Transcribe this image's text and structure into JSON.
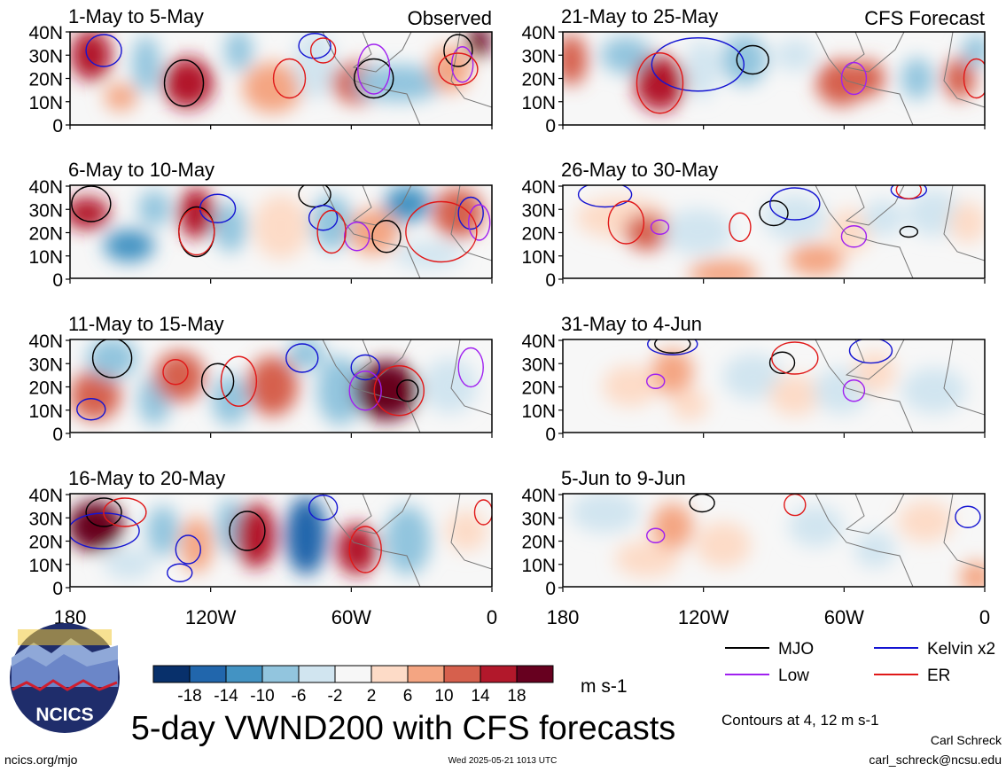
{
  "chart_data": {
    "type": "heatmap",
    "title": "5-day VWND200 with CFS forecasts",
    "variable": "VWND200",
    "units": "m s-1",
    "latitude_ticks": [
      "0",
      "10N",
      "20N",
      "30N",
      "40N"
    ],
    "longitude_ticks": [
      "180",
      "120W",
      "60W",
      "0"
    ],
    "colorbar": {
      "ticks": [
        "-18",
        "-14",
        "-10",
        "-6",
        "-2",
        "2",
        "6",
        "10",
        "14",
        "18"
      ],
      "colors": [
        "#08306b",
        "#2166ac",
        "#4393c3",
        "#92c5de",
        "#d1e5f0",
        "#f7f7f7",
        "#fddbc7",
        "#f4a582",
        "#d6604d",
        "#b2182b",
        "#67001f"
      ]
    },
    "contour_note": "Contours at 4, 12 m s-1",
    "legend": [
      {
        "label": "MJO",
        "color": "#000000"
      },
      {
        "label": "Kelvin x2",
        "color": "#1414d2"
      },
      {
        "label": "Low",
        "color": "#a020f0"
      },
      {
        "label": "ER",
        "color": "#e01818"
      }
    ],
    "panels": [
      {
        "period": "1-May to 5-May",
        "tag": "Observed",
        "column": "observed"
      },
      {
        "period": "6-May to 10-May",
        "tag": "",
        "column": "observed"
      },
      {
        "period": "11-May to 15-May",
        "tag": "",
        "column": "observed"
      },
      {
        "period": "16-May to 20-May",
        "tag": "",
        "column": "observed"
      },
      {
        "period": "21-May to 25-May",
        "tag": "CFS Forecast",
        "column": "forecast"
      },
      {
        "period": "26-May to 30-May",
        "tag": "",
        "column": "forecast"
      },
      {
        "period": "31-May to 4-Jun",
        "tag": "",
        "column": "forecast"
      },
      {
        "period": "5-Jun to 9-Jun",
        "tag": "",
        "column": "forecast"
      }
    ]
  },
  "logo": {
    "text": "NCICS"
  },
  "footer": {
    "left": "ncics.org/mjo",
    "timestamp": "Wed 2025-05-21 1013 UTC",
    "author": "Carl Schreck",
    "email": "carl_schreck@ncsu.edu"
  }
}
